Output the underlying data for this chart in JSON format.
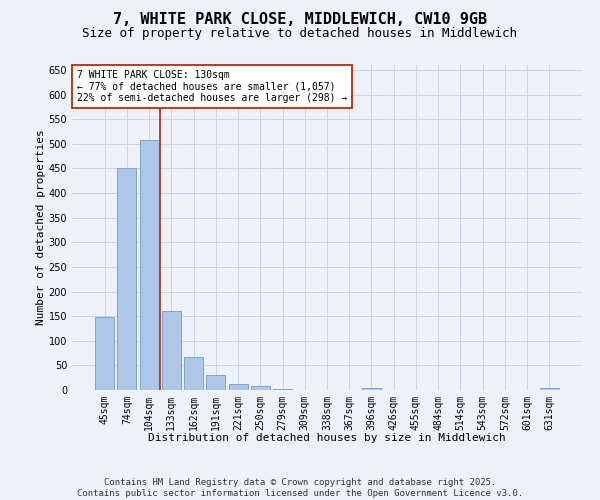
{
  "title_line1": "7, WHITE PARK CLOSE, MIDDLEWICH, CW10 9GB",
  "title_line2": "Size of property relative to detached houses in Middlewich",
  "xlabel": "Distribution of detached houses by size in Middlewich",
  "ylabel": "Number of detached properties",
  "categories": [
    "45sqm",
    "74sqm",
    "104sqm",
    "133sqm",
    "162sqm",
    "191sqm",
    "221sqm",
    "250sqm",
    "279sqm",
    "309sqm",
    "338sqm",
    "367sqm",
    "396sqm",
    "426sqm",
    "455sqm",
    "484sqm",
    "514sqm",
    "543sqm",
    "572sqm",
    "601sqm",
    "631sqm"
  ],
  "values": [
    148,
    450,
    508,
    160,
    67,
    30,
    13,
    8,
    3,
    0,
    0,
    0,
    4,
    0,
    0,
    0,
    0,
    0,
    0,
    0,
    4
  ],
  "bar_color": "#aec6e8",
  "bar_edge_color": "#6a9fd0",
  "grid_color": "#c8d4e8",
  "background_color": "#eef2f8",
  "vline_color": "#cc2200",
  "annotation_text": "7 WHITE PARK CLOSE: 130sqm\n← 77% of detached houses are smaller (1,057)\n22% of semi-detached houses are larger (298) →",
  "annotation_box_color": "white",
  "annotation_box_edge": "#cc2200",
  "ylim": [
    0,
    660
  ],
  "yticks": [
    0,
    50,
    100,
    150,
    200,
    250,
    300,
    350,
    400,
    450,
    500,
    550,
    600,
    650
  ],
  "footnote": "Contains HM Land Registry data © Crown copyright and database right 2025.\nContains public sector information licensed under the Open Government Licence v3.0.",
  "title_fontsize": 11,
  "subtitle_fontsize": 9,
  "axis_label_fontsize": 8,
  "tick_fontsize": 7,
  "annotation_fontsize": 7,
  "footnote_fontsize": 6.5
}
